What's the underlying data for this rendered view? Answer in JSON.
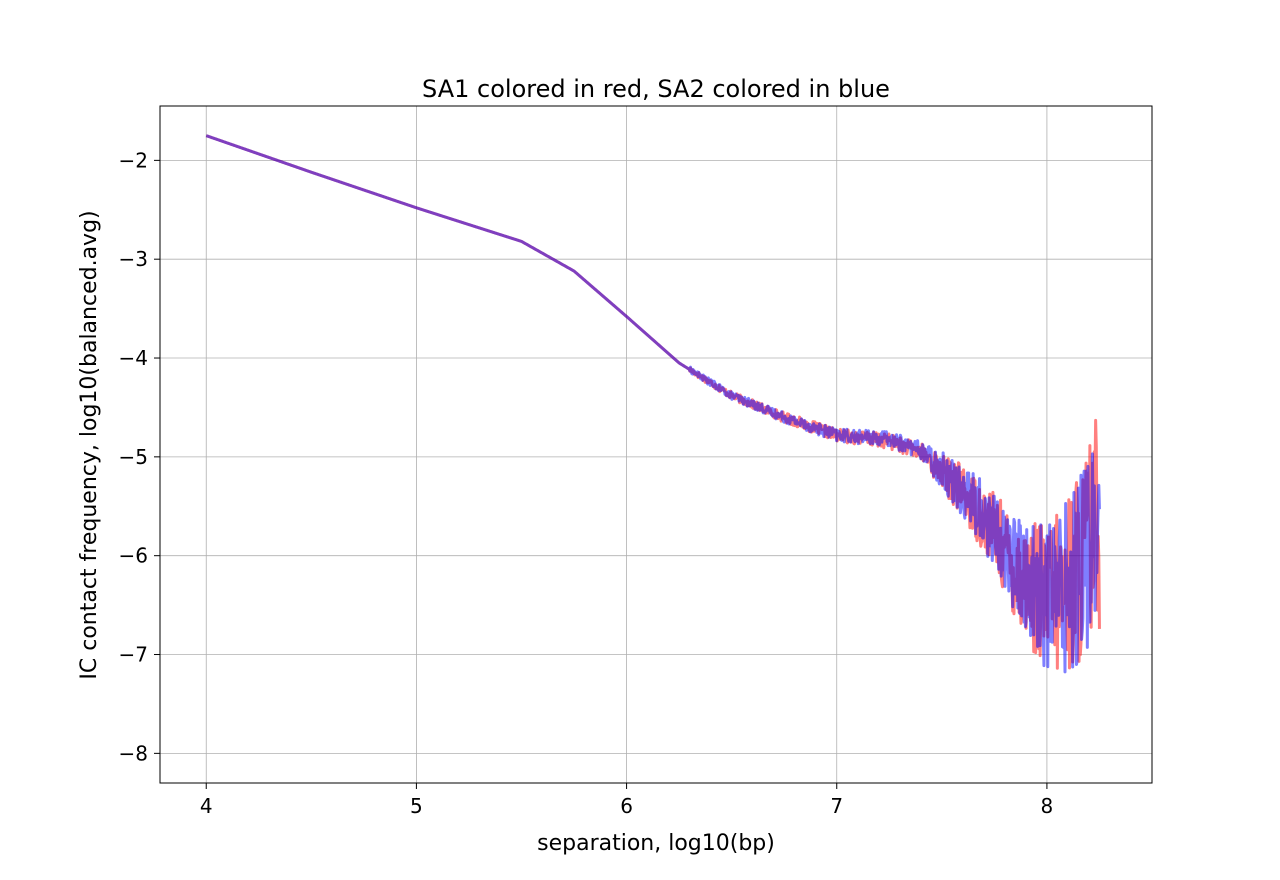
{
  "chart_data": {
    "type": "line",
    "title": "SA1 colored in red, SA2 colored in blue",
    "xlabel": "separation, log10(bp)",
    "ylabel": "IC contact frequency, log10(balanced.avg)",
    "xlim": [
      3.78,
      8.5
    ],
    "ylim": [
      -8.3,
      -1.45
    ],
    "xticks": [
      4,
      5,
      6,
      7,
      8
    ],
    "yticks": [
      -8,
      -7,
      -6,
      -5,
      -4,
      -3,
      -2
    ],
    "xtick_labels": [
      "4",
      "5",
      "6",
      "7",
      "8"
    ],
    "ytick_labels": [
      "−8",
      "−7",
      "−6",
      "−5",
      "−4",
      "−3",
      "−2"
    ],
    "grid": true,
    "series": [
      {
        "name": "SA1",
        "color": "#ff0000",
        "opacity": 0.5,
        "trend": {
          "x": [
            4.0,
            4.5,
            5.0,
            5.5,
            5.75,
            6.0,
            6.25,
            6.5,
            6.75,
            7.0,
            7.25,
            7.4,
            7.6,
            7.75,
            7.85,
            7.95,
            8.0,
            8.05,
            8.1,
            8.15,
            8.2,
            8.25
          ],
          "y": [
            -1.75,
            -2.12,
            -2.48,
            -2.82,
            -3.12,
            -3.58,
            -4.05,
            -4.38,
            -4.6,
            -4.78,
            -4.84,
            -4.95,
            -5.35,
            -5.75,
            -6.15,
            -6.35,
            -6.45,
            -6.4,
            -6.3,
            -6.1,
            -5.9,
            -5.6
          ]
        }
      },
      {
        "name": "SA2",
        "color": "#0000ff",
        "opacity": 0.5,
        "trend": {
          "x": [
            4.0,
            4.5,
            5.0,
            5.5,
            5.75,
            6.0,
            6.25,
            6.5,
            6.75,
            7.0,
            7.25,
            7.4,
            7.6,
            7.75,
            7.85,
            7.95,
            8.0,
            8.05,
            8.1,
            8.15,
            8.2,
            8.25
          ],
          "y": [
            -1.75,
            -2.12,
            -2.48,
            -2.82,
            -3.12,
            -3.58,
            -4.05,
            -4.38,
            -4.6,
            -4.78,
            -4.82,
            -4.93,
            -5.33,
            -5.73,
            -6.12,
            -6.33,
            -6.42,
            -6.38,
            -6.28,
            -6.08,
            -5.88,
            -5.55
          ]
        }
      }
    ]
  }
}
